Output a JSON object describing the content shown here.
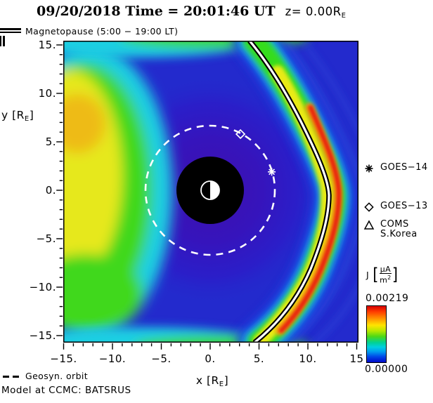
{
  "title": {
    "datetime": "09/20/2018 Time = 20:01:46 UT",
    "z_prefix": "z= 0.00R",
    "z_sub": "E"
  },
  "magnetopause_legend": {
    "label": "Magnetopause (5:00 − 19:00 LT)"
  },
  "axes": {
    "x": {
      "label_pre": "x [R",
      "label_sub": "E",
      "label_post": "]",
      "range": [
        -15,
        15
      ],
      "ticks": [
        {
          "v": -15,
          "t": "−15."
        },
        {
          "v": -10,
          "t": "−10."
        },
        {
          "v": -5,
          "t": "−5."
        },
        {
          "v": 0,
          "t": "0."
        },
        {
          "v": 5,
          "t": "5."
        },
        {
          "v": 10,
          "t": "10."
        },
        {
          "v": 15,
          "t": "15"
        }
      ]
    },
    "y": {
      "label_pre": "y [R",
      "label_sub": "E",
      "label_post": "]",
      "range": [
        -15,
        15
      ],
      "ticks": [
        {
          "v": 15,
          "t": "15."
        },
        {
          "v": 10,
          "t": "10."
        },
        {
          "v": 5,
          "t": "5."
        },
        {
          "v": 0,
          "t": "0."
        },
        {
          "v": -5,
          "t": "−5."
        },
        {
          "v": -10,
          "t": "−10."
        },
        {
          "v": -15,
          "t": "−15."
        }
      ]
    }
  },
  "satellite_legend": [
    {
      "name": "GOES−14",
      "symbol": "asterisk"
    },
    {
      "name": "GOES−13",
      "symbol": "diamond"
    },
    {
      "name": "COMS",
      "name2": "S.Korea",
      "symbol": "triangle"
    }
  ],
  "plot_markers": [
    {
      "name": "GOES-14",
      "symbol": "asterisk",
      "x_re": 6.3,
      "y_re": 1.9
    },
    {
      "name": "GOES-13",
      "symbol": "diamond",
      "x_re": 3.1,
      "y_re": 5.8
    }
  ],
  "colorbar": {
    "quantity": "J",
    "unit": {
      "open": "[",
      "num": "μA",
      "den_base": "m",
      "den_sup": "2",
      "close": "]"
    },
    "max": "0.00219",
    "min": "0.00000",
    "gradient": [
      "#d80000 0%",
      "#ff3c00 10%",
      "#ff9100 22%",
      "#ffe400 34%",
      "#b8e800 44%",
      "#4ed816 54%",
      "#00d295 65%",
      "#00cfe0 73%",
      "#009eef 81%",
      "#0048e8 90%",
      "#0009c8 100%"
    ]
  },
  "geosyn_legend": {
    "label": "Geosyn. orbit"
  },
  "model_caption": "Model at CCMC: BATSRUS",
  "palette": {
    "outer_sheath_blue": "#232acd",
    "inner_magnetosphere_violet": "#3d10ae",
    "band_cyan": "#17b8ea",
    "band_green": "#35dc1e",
    "band_yellow": "#e9ea17",
    "band_orange": "#f59d0e",
    "band_red": "#e8230e",
    "magnetopause_line": "#ffffff"
  },
  "chart_data": {
    "type": "heatmap",
    "title": "09/20/2018 Time = 20:01:46 UT z= 0.00RE",
    "xlabel": "x [RE]",
    "ylabel": "y [RE]",
    "xlim": [
      -15,
      15
    ],
    "ylim": [
      -15,
      15
    ],
    "x_ticks": [
      -15,
      -10,
      -5,
      0,
      5,
      10,
      15
    ],
    "y_ticks": [
      15,
      10,
      5,
      0,
      -5,
      -10,
      -15
    ],
    "grid": false,
    "colorbar": {
      "label": "J [μA/m2]",
      "min": 0.0,
      "max": 0.00219,
      "scale": "rainbow (red=max, blue=min)"
    },
    "features": {
      "magnetopause_curve_re": [
        [
          4.0,
          15.4
        ],
        [
          6.4,
          12.4
        ],
        [
          8.3,
          9.1
        ],
        [
          9.9,
          5.9
        ],
        [
          11.2,
          3.0
        ],
        [
          12.2,
          0.0
        ],
        [
          11.7,
          -3.2
        ],
        [
          10.8,
          -6.4
        ],
        [
          9.4,
          -9.3
        ],
        [
          7.6,
          -12.2
        ],
        [
          4.5,
          -15.7
        ]
      ],
      "magnetopause_standoff_re": 12.2,
      "current_layer": "bright rainbow band (J up to 0.00219 μA/m2) hugging the dayside magnetopause, red core strongest for -12 < y < 8 RE",
      "geosync_orbit": {
        "radius_re": 6.6,
        "style": "white dashed circle"
      },
      "inner_boundary": {
        "radius_re": 3.5,
        "style": "black filled disk"
      },
      "earth": {
        "radius_re": 1.0,
        "style": "half white (dayside, +x) / half black (nightside)"
      },
      "nightside_enhancement": "broad green-yellow J region for x < -8 RE with orange core near (-13, 8) RE",
      "satellites": [
        {
          "name": "GOES-14",
          "x_re": 6.3,
          "y_re": 1.9,
          "plotted": true
        },
        {
          "name": "GOES-13",
          "x_re": 3.1,
          "y_re": 5.8,
          "plotted": true
        },
        {
          "name": "COMS S.Korea",
          "plotted": false
        }
      ]
    }
  }
}
